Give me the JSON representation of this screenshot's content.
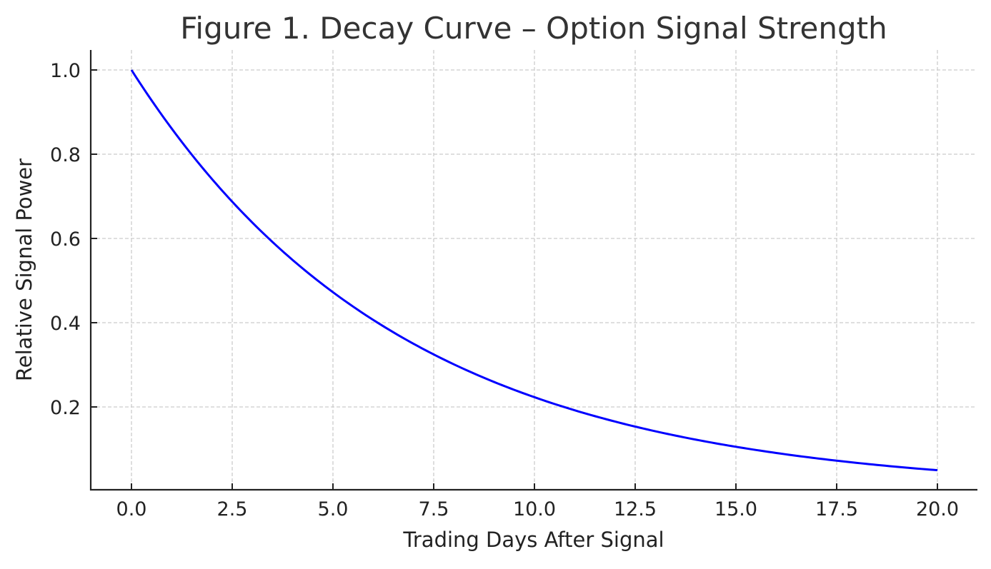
{
  "chart_data": {
    "type": "line",
    "title": "Figure 1. Decay Curve – Option Signal Strength",
    "xlabel": "Trading Days After Signal",
    "ylabel": "Relative Signal Power",
    "xlim": [
      -1.0,
      21.0
    ],
    "ylim": [
      0.0,
      1.05
    ],
    "xticks": [
      "0.0",
      "2.5",
      "5.0",
      "7.5",
      "10.0",
      "12.5",
      "15.0",
      "17.5",
      "20.0"
    ],
    "yticks": [
      "0.2",
      "0.4",
      "0.6",
      "0.8",
      "1.0"
    ],
    "grid": true,
    "legend": null,
    "series": [
      {
        "name": "Signal Strength",
        "color": "#0000ff",
        "formula": "exp(-0.15 * x)",
        "x": [
          0,
          1,
          2,
          3,
          4,
          5,
          6,
          7,
          8,
          9,
          10,
          11,
          12,
          13,
          14,
          15,
          16,
          17,
          18,
          19,
          20
        ],
        "values": [
          1.0,
          0.861,
          0.741,
          0.638,
          0.549,
          0.472,
          0.407,
          0.35,
          0.301,
          0.259,
          0.223,
          0.192,
          0.165,
          0.142,
          0.122,
          0.105,
          0.091,
          0.078,
          0.067,
          0.058,
          0.05
        ]
      }
    ]
  }
}
